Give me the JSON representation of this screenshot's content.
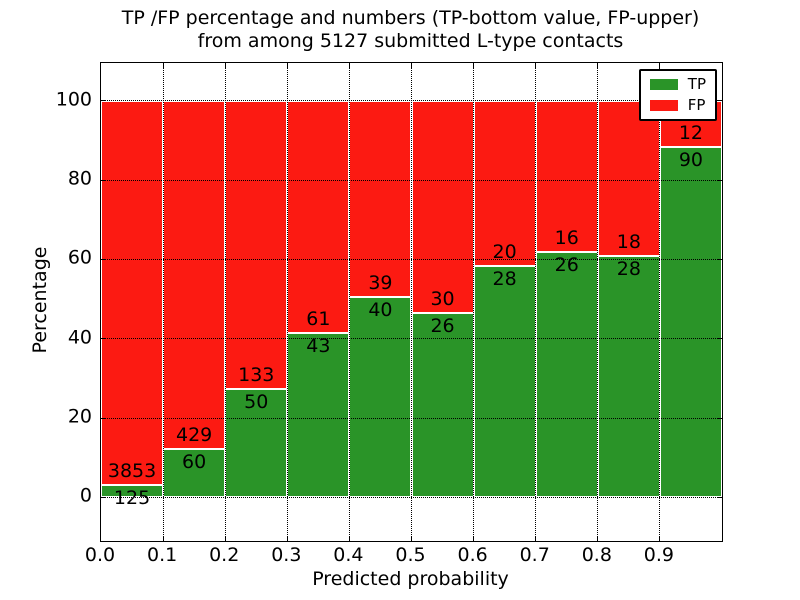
{
  "figure": {
    "title_lines": [
      "TP /FP percentage and numbers (TP-bottom value, FP-upper)",
      "from among 5127 submitted L-type contacts"
    ]
  },
  "chart_data": {
    "type": "bar",
    "stacked": true,
    "title": "TP /FP percentage and numbers (TP-bottom value, FP-upper)\nfrom among 5127 submitted L-type contacts",
    "xlabel": "Predicted probability",
    "ylabel": "Percentage",
    "xlim": [
      0.0,
      1.0
    ],
    "ylim": [
      -11,
      109.5
    ],
    "x_tick_values": [
      0.0,
      0.1,
      0.2,
      0.3,
      0.4,
      0.5,
      0.6,
      0.7,
      0.8,
      0.9
    ],
    "x_tick_labels": [
      "0.0",
      "0.1",
      "0.2",
      "0.3",
      "0.4",
      "0.5",
      "0.6",
      "0.7",
      "0.8",
      "0.9"
    ],
    "y_tick_values": [
      0,
      20,
      40,
      60,
      80,
      100
    ],
    "y_tick_labels": [
      "0",
      "20",
      "40",
      "60",
      "80",
      "100"
    ],
    "grid": "dotted, drawn above bars",
    "legend_position": "upper right",
    "series": [
      {
        "name": "TP",
        "color": "#2a9428"
      },
      {
        "name": "FP",
        "color": "#fc1a12"
      }
    ],
    "bins": [
      {
        "range": [
          0.0,
          0.1
        ],
        "tp": 125,
        "fp": 3853
      },
      {
        "range": [
          0.1,
          0.2
        ],
        "tp": 60,
        "fp": 429
      },
      {
        "range": [
          0.2,
          0.3
        ],
        "tp": 50,
        "fp": 133
      },
      {
        "range": [
          0.3,
          0.4
        ],
        "tp": 43,
        "fp": 61
      },
      {
        "range": [
          0.4,
          0.5
        ],
        "tp": 40,
        "fp": 39
      },
      {
        "range": [
          0.5,
          0.6
        ],
        "tp": 26,
        "fp": 30
      },
      {
        "range": [
          0.6,
          0.7
        ],
        "tp": 28,
        "fp": 20
      },
      {
        "range": [
          0.7,
          0.8
        ],
        "tp": 26,
        "fp": 16
      },
      {
        "range": [
          0.8,
          0.9
        ],
        "tp": 28,
        "fp": 18
      },
      {
        "range": [
          0.9,
          1.0
        ],
        "tp": 90,
        "fp": 12
      }
    ]
  },
  "colors": {
    "tp_green": "#2a9428",
    "fp_red": "#fc1a12",
    "grid_black": "#000000",
    "background": "#ffffff"
  }
}
